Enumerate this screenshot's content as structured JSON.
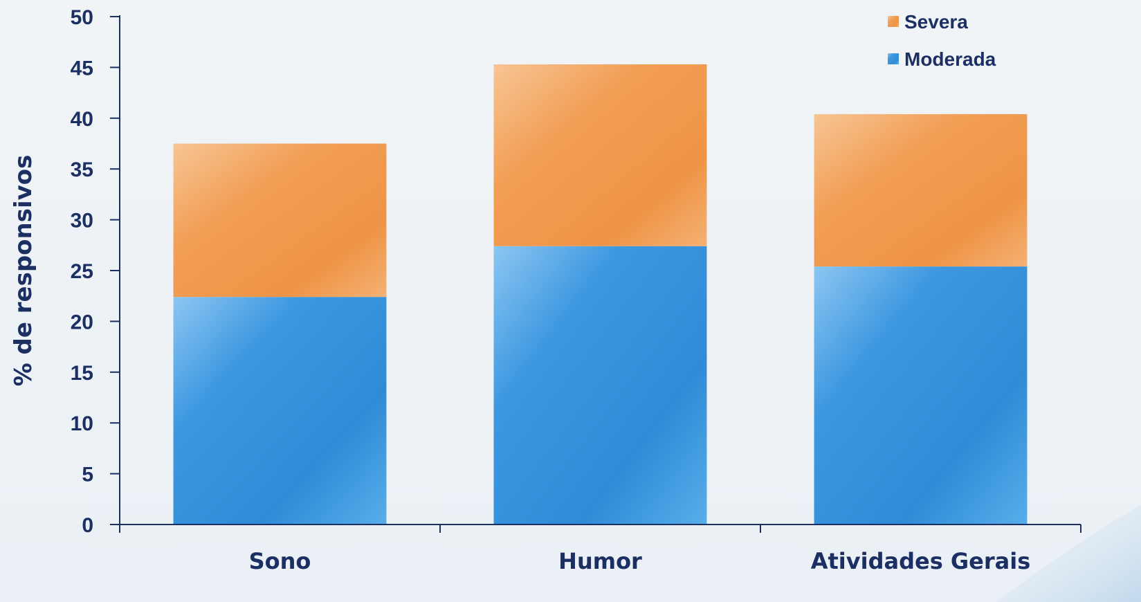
{
  "chart_data": {
    "type": "bar",
    "stacked": true,
    "categories": [
      "Sono",
      "Humor",
      "Atividades Gerais"
    ],
    "series": [
      {
        "name": "Moderada",
        "values": [
          22.4,
          27.4,
          25.4
        ],
        "color": "#3a97e0"
      },
      {
        "name": "Severa",
        "values": [
          15.1,
          17.9,
          15.0
        ],
        "color": "#f2a35c"
      }
    ],
    "ylabel": "% de responsivos",
    "xlabel": "",
    "ylim": [
      0,
      50
    ],
    "yticks": [
      0,
      5,
      10,
      15,
      20,
      25,
      30,
      35,
      40,
      45,
      50
    ],
    "legend_position": "top-right",
    "legend_order": [
      "Severa",
      "Moderada"
    ],
    "grid": false,
    "axis_color": "#1b2f63"
  }
}
